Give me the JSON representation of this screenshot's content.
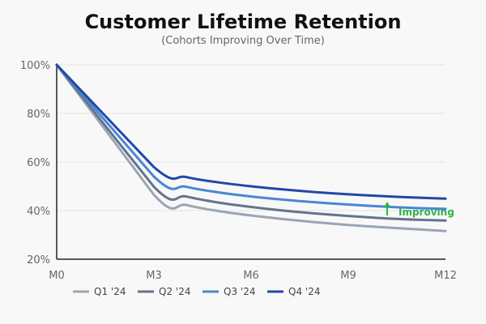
{
  "chart_data": {
    "type": "line",
    "title": "Customer Lifetime Retention",
    "subtitle": "(Cohorts Improving Over Time)",
    "xlabel": "",
    "ylabel": "",
    "x": [
      0,
      3,
      6,
      9,
      12
    ],
    "x_tick_labels": [
      "M0",
      "M3",
      "M6",
      "M9",
      "M12"
    ],
    "y_ticks": [
      20,
      40,
      60,
      80,
      100
    ],
    "y_tick_labels": [
      "20%",
      "40%",
      "60%",
      "80%",
      "100%"
    ],
    "ylim": [
      20,
      100
    ],
    "xlim": [
      0,
      12
    ],
    "grid": "horizontal",
    "series": [
      {
        "name": "Q1 '24",
        "color": "#9aa5b4",
        "x": [
          0,
          3,
          4,
          5,
          6,
          7,
          8,
          9,
          10,
          11,
          12
        ],
        "values": [
          100,
          46.5,
          42.3,
          39.8,
          38.0,
          36.5,
          35.2,
          34.1,
          33.2,
          32.4,
          31.6
        ]
      },
      {
        "name": "Q2 '24",
        "color": "#64748b",
        "x": [
          0,
          3,
          4,
          5,
          6,
          7,
          8,
          9,
          10,
          11,
          12
        ],
        "values": [
          100,
          49.8,
          45.8,
          43.3,
          41.5,
          40.0,
          38.8,
          37.8,
          36.9,
          36.3,
          35.9
        ]
      },
      {
        "name": "Q3 '24",
        "color": "#4a86d4",
        "x": [
          0,
          3,
          4,
          5,
          6,
          7,
          8,
          9,
          10,
          11,
          12
        ],
        "values": [
          100,
          54.0,
          49.8,
          47.5,
          45.8,
          44.5,
          43.4,
          42.5,
          41.7,
          41.1,
          40.7
        ]
      },
      {
        "name": "Q4 '24",
        "color": "#2347a8",
        "x": [
          0,
          3,
          4,
          5,
          6,
          7,
          8,
          9,
          10,
          11,
          12
        ],
        "values": [
          100,
          57.9,
          53.8,
          51.6,
          50.0,
          48.7,
          47.6,
          46.7,
          46.0,
          45.4,
          44.9
        ]
      }
    ],
    "legend_position": "bottom-left",
    "annotation": {
      "text": "Improving",
      "x": 10.2,
      "y": 40,
      "arrow": "up",
      "color": "#2db34a"
    }
  }
}
